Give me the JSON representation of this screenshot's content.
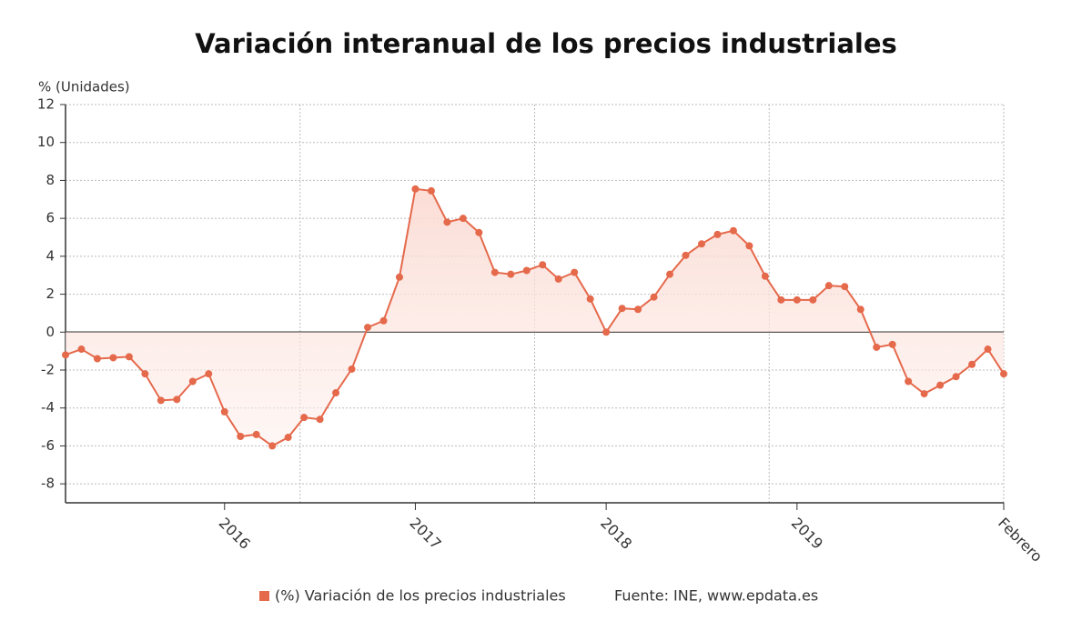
{
  "chart_data": {
    "type": "line",
    "title": "Variación interanual de los precios industriales",
    "y_label": "% (Unidades)",
    "source": "Fuente: INE, www.epdata.es",
    "categories": [
      null,
      null,
      null,
      null,
      null,
      null,
      null,
      null,
      null,
      null,
      "2016",
      null,
      null,
      null,
      null,
      null,
      null,
      null,
      null,
      null,
      null,
      null,
      "2017",
      null,
      null,
      null,
      null,
      null,
      null,
      null,
      null,
      null,
      null,
      null,
      "2018",
      null,
      null,
      null,
      null,
      null,
      null,
      null,
      null,
      null,
      null,
      null,
      "2019",
      null,
      null,
      null,
      null,
      null,
      null,
      null,
      null,
      null,
      null,
      null,
      null,
      "Febrero"
    ],
    "series": [
      {
        "name": "(%) Variación de los precios industriales",
        "color": "#e5694b",
        "values": [
          -1.2,
          -0.9,
          -1.4,
          -1.35,
          -1.3,
          -2.2,
          -3.6,
          -3.55,
          -2.6,
          -2.2,
          -4.2,
          -5.5,
          -5.4,
          -6.0,
          -5.55,
          -4.5,
          -4.6,
          -3.2,
          -1.95,
          0.25,
          0.6,
          2.9,
          7.55,
          7.45,
          5.8,
          6.0,
          5.25,
          3.15,
          3.05,
          3.25,
          3.55,
          2.8,
          3.15,
          1.75,
          0.0,
          1.25,
          1.2,
          1.85,
          3.05,
          4.05,
          4.65,
          5.15,
          5.35,
          4.55,
          2.95,
          1.7,
          1.7,
          1.7,
          2.45,
          2.4,
          1.2,
          -0.8,
          -0.65,
          -2.6,
          -3.25,
          -2.8,
          -2.35,
          -1.7,
          -0.9,
          -2.2
        ]
      }
    ],
    "ylim": [
      -9,
      12
    ],
    "yticks": [
      -8,
      -6,
      -4,
      -2,
      0,
      2,
      4,
      6,
      8,
      10,
      12
    ],
    "grid": true
  }
}
